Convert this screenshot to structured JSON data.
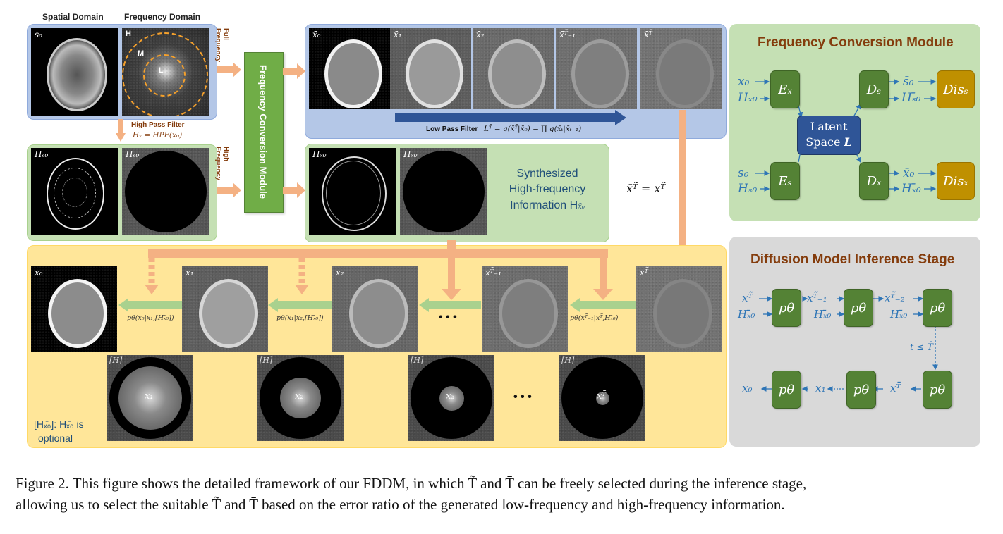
{
  "colors": {
    "blue_panel": "#b4c7e7",
    "green_panel": "#c5e0b4",
    "yellow_panel": "#ffe699",
    "gray_panel": "#d9d9d9",
    "green_box": "#548235",
    "gold_box": "#bf9000",
    "latent_box": "#2f5597",
    "orange_arrow": "#f4b183",
    "blue_arrow": "#2f5597",
    "light_green_arrow": "#a9d18e",
    "header_text": "#843c0c",
    "math_text": "#2e75b6"
  },
  "top_left": {
    "spatial_header": "Spatial Domain",
    "frequency_header": "Frequency Domain",
    "s0_label": "s₀",
    "freq_H": "H",
    "freq_M": "M",
    "freq_L": "L",
    "full_frequency_label": "Full Frequency",
    "high_frequency_label": "High Frequency",
    "hpf_title": "High Pass Filter",
    "hpf_formula": "Hₓ = HPF(x₀)",
    "hs0_label": "Hₛ₀",
    "hs0_label2": "Hₛ₀"
  },
  "fcm_vertical": "Frequency Conversion Module",
  "forward": {
    "tiles": [
      "x̄₀",
      "x̄₁",
      "x̄₂",
      "x̄ᵀ̄₋₁",
      "x̄ᵀ̄"
    ],
    "lpf_title": "Low Pass Filter",
    "lpf_formula": "Lᵀ̄ = q(x̄ᵀ̄|x̄₀) = ∏ q(x̄ₜ|x̄ₜ₋₁)"
  },
  "synth": {
    "tile1": "Hₓ̄₀",
    "tile2": "Hₓ̄₀",
    "line1": "Synthesized",
    "line2": "High-frequency",
    "line3": "Information H",
    "line3_sub": "x̄₀"
  },
  "equation_mid": "x̄ᵀ̃ = xᵀ̃",
  "inference": {
    "tiles": [
      "x₀",
      "x₁",
      "x₂",
      "xᵀ̃₋₁",
      "xᵀ̃"
    ],
    "p_labels": [
      "pθ(x₀|x₁,[Hₓ̄₀])",
      "pθ(x₁|x₂,[Hₓ̄₀])",
      "pθ(xᵀ̃₋₁|xᵀ̃,Hₓ̄₀)"
    ],
    "ellipsis_top": "• • •",
    "ellipsis_bottom": "• • •",
    "spectra": [
      {
        "label": "[H]",
        "x": "x₁",
        "inner_frac": 0.78
      },
      {
        "label": "[H]",
        "x": "x₂",
        "inner_frac": 0.5
      },
      {
        "label": "[H]",
        "x": "x₃",
        "inner_frac": 0.3
      },
      {
        "label": "[H]",
        "x": "xᵀ̃",
        "inner_frac": 0.16
      }
    ],
    "optional_note_line1": "[Hₓ̄₀]: Hₓ̄₀ is",
    "optional_note_line2": "optional"
  },
  "fcm_panel": {
    "title": "Frequency Conversion Module",
    "in1a": "x₀",
    "in1b": "Hₓ₀",
    "in2a": "s₀",
    "in2b": "Hₛ₀",
    "Ex": "Eₓ",
    "Es": "Eₛ",
    "Ds": "Dₛ",
    "Dx": "Dₓ",
    "latent_line1": "Latent",
    "latent_line2": "Space",
    "latent_L": "L",
    "out1a": "s̄₀",
    "out1b": "Hₛ̄₀",
    "out2a": "x̄₀",
    "out2b": "Hₓ̄₀",
    "Dis_s": "Disₛ",
    "Dis_x": "Disₓ"
  },
  "dmi_panel": {
    "title": "Diffusion Model Inference Stage",
    "p": "pθ",
    "in_a": "xᵀ̃",
    "in_b": "Hₓ̄₀",
    "mid_a": "xᵀ̃₋₁",
    "mid_b": "Hₓ̄₀",
    "mid2_a": "xᵀ̃₋₂",
    "mid2_b": "Hₓ̄₀",
    "cond": "t ≤ T̄",
    "bot_x0": "x₀",
    "bot_x1": "x₁",
    "bot_xT": "xᵀ̄"
  },
  "caption": {
    "line1": "Figure 2.  This figure shows the detailed framework of our FDDM, in which T̃ and T̄ can be freely selected during the inference stage,",
    "line2": "allowing us to select the suitable T̃ and T̄ based on the error ratio of the generated low-frequency and high-frequency information."
  }
}
